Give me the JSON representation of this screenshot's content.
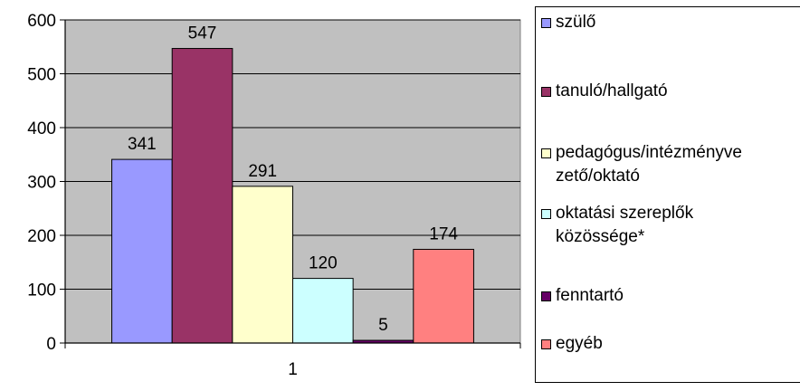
{
  "chart_data": {
    "type": "bar",
    "categories": [
      "1"
    ],
    "series": [
      {
        "name": "szülő",
        "values": [
          341
        ],
        "color": "#9999ff"
      },
      {
        "name": "tanuló/hallgató",
        "values": [
          547
        ],
        "color": "#993366"
      },
      {
        "name": "pedagógus/intézményvezető/oktató",
        "values": [
          291
        ],
        "color": "#ffffcc"
      },
      {
        "name": "oktatási szereplők közössége*",
        "values": [
          120
        ],
        "color": "#ccffff"
      },
      {
        "name": "fenntartó",
        "values": [
          5
        ],
        "color": "#660066"
      },
      {
        "name": "egyéb",
        "values": [
          174
        ],
        "color": "#ff8080"
      }
    ],
    "ylim": [
      0,
      600
    ],
    "yticks": [
      0,
      100,
      200,
      300,
      400,
      500,
      600
    ],
    "grid": true,
    "plot_background": "#c0c0c0",
    "legend_position": "right",
    "legend_labels": [
      "szülő",
      "tanuló/hallgató",
      "pedagógus/intézményve\nzető/oktató",
      "oktatási szereplők\nközössége*",
      "fenntartó",
      "egyéb"
    ]
  }
}
